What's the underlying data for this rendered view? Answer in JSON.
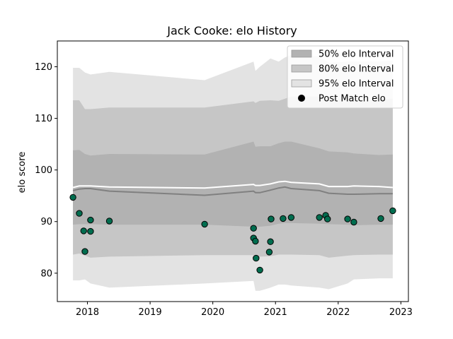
{
  "chart_data": {
    "type": "area",
    "title": "Jack Cooke: elo History",
    "xlabel": "",
    "ylabel": "elo score",
    "xlim": [
      2017.52,
      2023.12
    ],
    "ylim": [
      74.5,
      125.0
    ],
    "x_ticks": [
      2018,
      2019,
      2020,
      2021,
      2022,
      2023
    ],
    "x_tick_labels": [
      "2018",
      "2019",
      "2020",
      "2021",
      "2022",
      "2023"
    ],
    "y_ticks": [
      80,
      90,
      100,
      110,
      120
    ],
    "y_tick_labels": [
      "80",
      "90",
      "100",
      "110",
      "120"
    ],
    "grid": false,
    "legend_position": "upper-right",
    "colors": {
      "band_50": "#b2b2b2",
      "band_80": "#c6c6c6",
      "band_95": "#e3e3e3",
      "mean_line": "#ffffff",
      "median_line": "#808080",
      "points_fill": "#006d4f",
      "points_edge": "#000000"
    },
    "legend": [
      {
        "label": "50% elo Interval",
        "kind": "band",
        "color": "#b2b2b2"
      },
      {
        "label": "80% elo Interval",
        "kind": "band",
        "color": "#c6c6c6"
      },
      {
        "label": "95% elo Interval",
        "kind": "band",
        "color": "#e3e3e3"
      },
      {
        "label": "Post Match elo",
        "kind": "point",
        "color": "#000000"
      }
    ],
    "bands": {
      "x": [
        2017.77,
        2017.87,
        2017.96,
        2018.05,
        2018.35,
        2019.87,
        2020.65,
        2020.68,
        2020.75,
        2020.92,
        2021.05,
        2021.15,
        2021.25,
        2021.7,
        2021.85,
        2022.15,
        2022.25,
        2022.65,
        2022.87
      ],
      "p95_upper": [
        119.8,
        119.8,
        118.9,
        118.5,
        119.0,
        117.4,
        121.0,
        119.2,
        120.0,
        121.6,
        121.0,
        121.8,
        122.3,
        122.0,
        120.8,
        121.0,
        121.0,
        121.0,
        121.2
      ],
      "p80_upper": [
        113.5,
        113.5,
        111.8,
        111.8,
        112.1,
        112.1,
        113.3,
        113.0,
        113.4,
        113.5,
        113.4,
        113.8,
        114.2,
        114.2,
        113.7,
        113.6,
        113.6,
        113.6,
        113.8
      ],
      "p50_upper": [
        103.8,
        103.9,
        103.1,
        102.8,
        103.1,
        103.0,
        105.5,
        104.5,
        104.6,
        104.6,
        105.2,
        105.5,
        105.5,
        104.2,
        103.6,
        103.4,
        103.2,
        102.9,
        103.0
      ],
      "median": [
        96.0,
        96.3,
        96.4,
        96.4,
        95.9,
        95.1,
        95.9,
        95.6,
        95.6,
        96.1,
        96.5,
        96.7,
        96.4,
        96.0,
        95.5,
        95.3,
        95.3,
        95.4,
        95.4
      ],
      "mean": [
        96.6,
        96.9,
        96.9,
        96.9,
        96.7,
        96.5,
        97.2,
        97.0,
        97.0,
        97.3,
        97.7,
        97.8,
        97.6,
        97.3,
        96.8,
        96.8,
        96.9,
        96.8,
        96.6
      ],
      "p50_lower": [
        89.4,
        89.5,
        89.5,
        89.5,
        89.4,
        89.4,
        89.0,
        88.9,
        89.0,
        89.2,
        89.6,
        89.7,
        89.7,
        89.6,
        89.5,
        89.4,
        89.3,
        89.4,
        89.4
      ],
      "p80_lower": [
        83.6,
        83.8,
        83.4,
        83.0,
        83.2,
        83.5,
        83.5,
        83.0,
        83.2,
        83.3,
        83.6,
        83.6,
        83.6,
        83.5,
        83.0,
        83.4,
        83.5,
        83.6,
        83.6
      ],
      "p95_lower": [
        78.6,
        78.6,
        78.8,
        78.0,
        77.2,
        78.0,
        78.5,
        76.6,
        76.6,
        77.2,
        77.8,
        77.8,
        77.6,
        77.2,
        76.9,
        78.0,
        78.8,
        79.0,
        79.0
      ]
    },
    "points": [
      {
        "x": 2017.77,
        "y": 94.7
      },
      {
        "x": 2017.87,
        "y": 91.6
      },
      {
        "x": 2017.94,
        "y": 88.2
      },
      {
        "x": 2017.96,
        "y": 84.2
      },
      {
        "x": 2018.05,
        "y": 90.3
      },
      {
        "x": 2018.05,
        "y": 88.1
      },
      {
        "x": 2018.35,
        "y": 90.1
      },
      {
        "x": 2019.87,
        "y": 89.5
      },
      {
        "x": 2020.65,
        "y": 88.7
      },
      {
        "x": 2020.65,
        "y": 86.8
      },
      {
        "x": 2020.68,
        "y": 86.2
      },
      {
        "x": 2020.69,
        "y": 82.9
      },
      {
        "x": 2020.75,
        "y": 80.6
      },
      {
        "x": 2020.9,
        "y": 84.1
      },
      {
        "x": 2020.92,
        "y": 86.1
      },
      {
        "x": 2020.93,
        "y": 90.5
      },
      {
        "x": 2021.12,
        "y": 90.6
      },
      {
        "x": 2021.25,
        "y": 90.8
      },
      {
        "x": 2021.7,
        "y": 90.8
      },
      {
        "x": 2021.8,
        "y": 91.2
      },
      {
        "x": 2021.83,
        "y": 90.5
      },
      {
        "x": 2022.15,
        "y": 90.5
      },
      {
        "x": 2022.25,
        "y": 89.9
      },
      {
        "x": 2022.68,
        "y": 90.6
      },
      {
        "x": 2022.87,
        "y": 92.1
      }
    ]
  }
}
